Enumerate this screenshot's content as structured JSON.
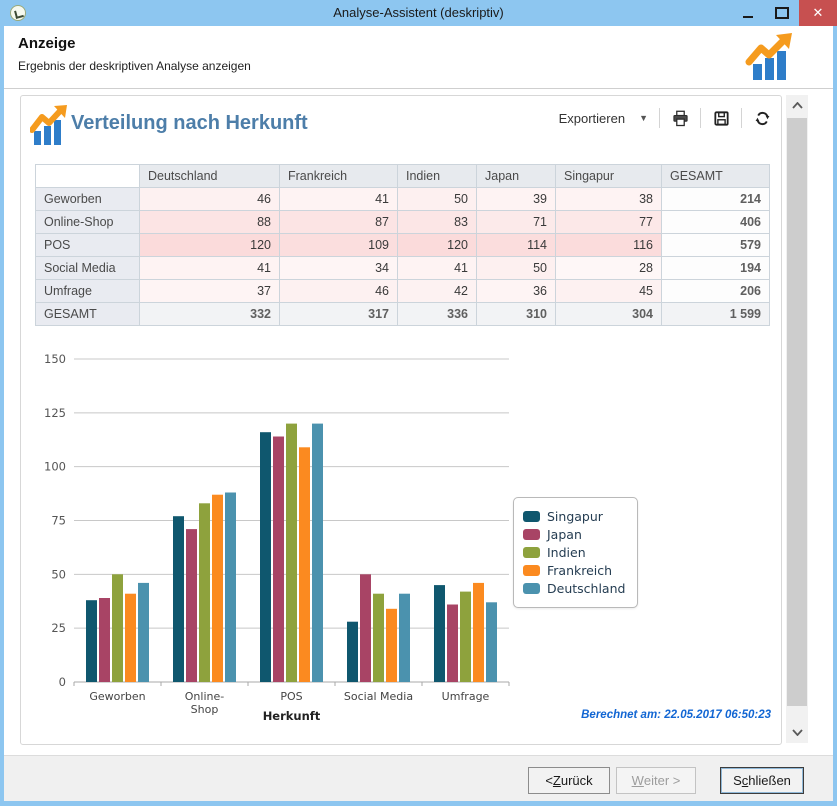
{
  "window": {
    "title": "Analyse-Assistent (deskriptiv)"
  },
  "header": {
    "title": "Anzeige",
    "subtitle": "Ergebnis der deskriptiven Analyse anzeigen"
  },
  "toolbar": {
    "export_label": "Exportieren"
  },
  "panel": {
    "title": "Verteilung nach Herkunft",
    "computed_at": "Berechnet am: 22.05.2017 06:50:23"
  },
  "table": {
    "columns": [
      "",
      "Deutschland",
      "Frankreich",
      "Indien",
      "Japan",
      "Singapur",
      "GESAMT"
    ],
    "rows": [
      {
        "label": "Geworben",
        "values": [
          46,
          41,
          50,
          39,
          38
        ],
        "total": "214"
      },
      {
        "label": "Online-Shop",
        "values": [
          88,
          87,
          83,
          71,
          77
        ],
        "total": "406"
      },
      {
        "label": "POS",
        "values": [
          120,
          109,
          120,
          114,
          116
        ],
        "total": "579"
      },
      {
        "label": "Social Media",
        "values": [
          41,
          34,
          41,
          50,
          28
        ],
        "total": "194"
      },
      {
        "label": "Umfrage",
        "values": [
          37,
          46,
          42,
          36,
          45
        ],
        "total": "206"
      }
    ],
    "total_row": {
      "label": "GESAMT",
      "values": [
        "332",
        "317",
        "336",
        "310",
        "304"
      ],
      "total": "1 599"
    }
  },
  "chart_data": {
    "type": "bar",
    "title": "",
    "xlabel": "Herkunft",
    "ylabel": "",
    "categories": [
      "Geworben",
      "Online-Shop",
      "POS",
      "Social Media",
      "Umfrage"
    ],
    "category_label_lines": [
      [
        "Geworben"
      ],
      [
        "Online-",
        "Shop"
      ],
      [
        "POS"
      ],
      [
        "Social Media"
      ],
      [
        "Umfrage"
      ]
    ],
    "ylim": [
      0,
      150
    ],
    "yticks": [
      0,
      25,
      50,
      75,
      100,
      125,
      150
    ],
    "grid": true,
    "legend_position": "right",
    "series": [
      {
        "name": "Singapur",
        "color": "#0f576e",
        "values": [
          38,
          77,
          116,
          28,
          45
        ]
      },
      {
        "name": "Japan",
        "color": "#a84465",
        "values": [
          39,
          71,
          114,
          50,
          36
        ]
      },
      {
        "name": "Indien",
        "color": "#8ea23d",
        "values": [
          50,
          83,
          120,
          41,
          42
        ]
      },
      {
        "name": "Frankreich",
        "color": "#fb8a20",
        "values": [
          41,
          87,
          109,
          34,
          46
        ]
      },
      {
        "name": "Deutschland",
        "color": "#4b92ae",
        "values": [
          46,
          88,
          120,
          41,
          37
        ]
      }
    ]
  },
  "footer_buttons": {
    "back": {
      "text": "< Zurück",
      "key_index": 2,
      "disabled": false
    },
    "next": {
      "text": "Weiter >",
      "key_index": 0,
      "disabled": true
    },
    "close": {
      "text": "Schließen",
      "key_index": 1,
      "disabled": false
    }
  },
  "colors": {
    "titlebar_blue": "#8dc6f0",
    "close_red": "#c75050",
    "panel_title_blue": "#4d7ea9",
    "computed_blue": "#1266d3",
    "icon_orange": "#f59b1e",
    "icon_blue": "#2e7dc9",
    "heat_base_rgb": "235,90,90"
  }
}
